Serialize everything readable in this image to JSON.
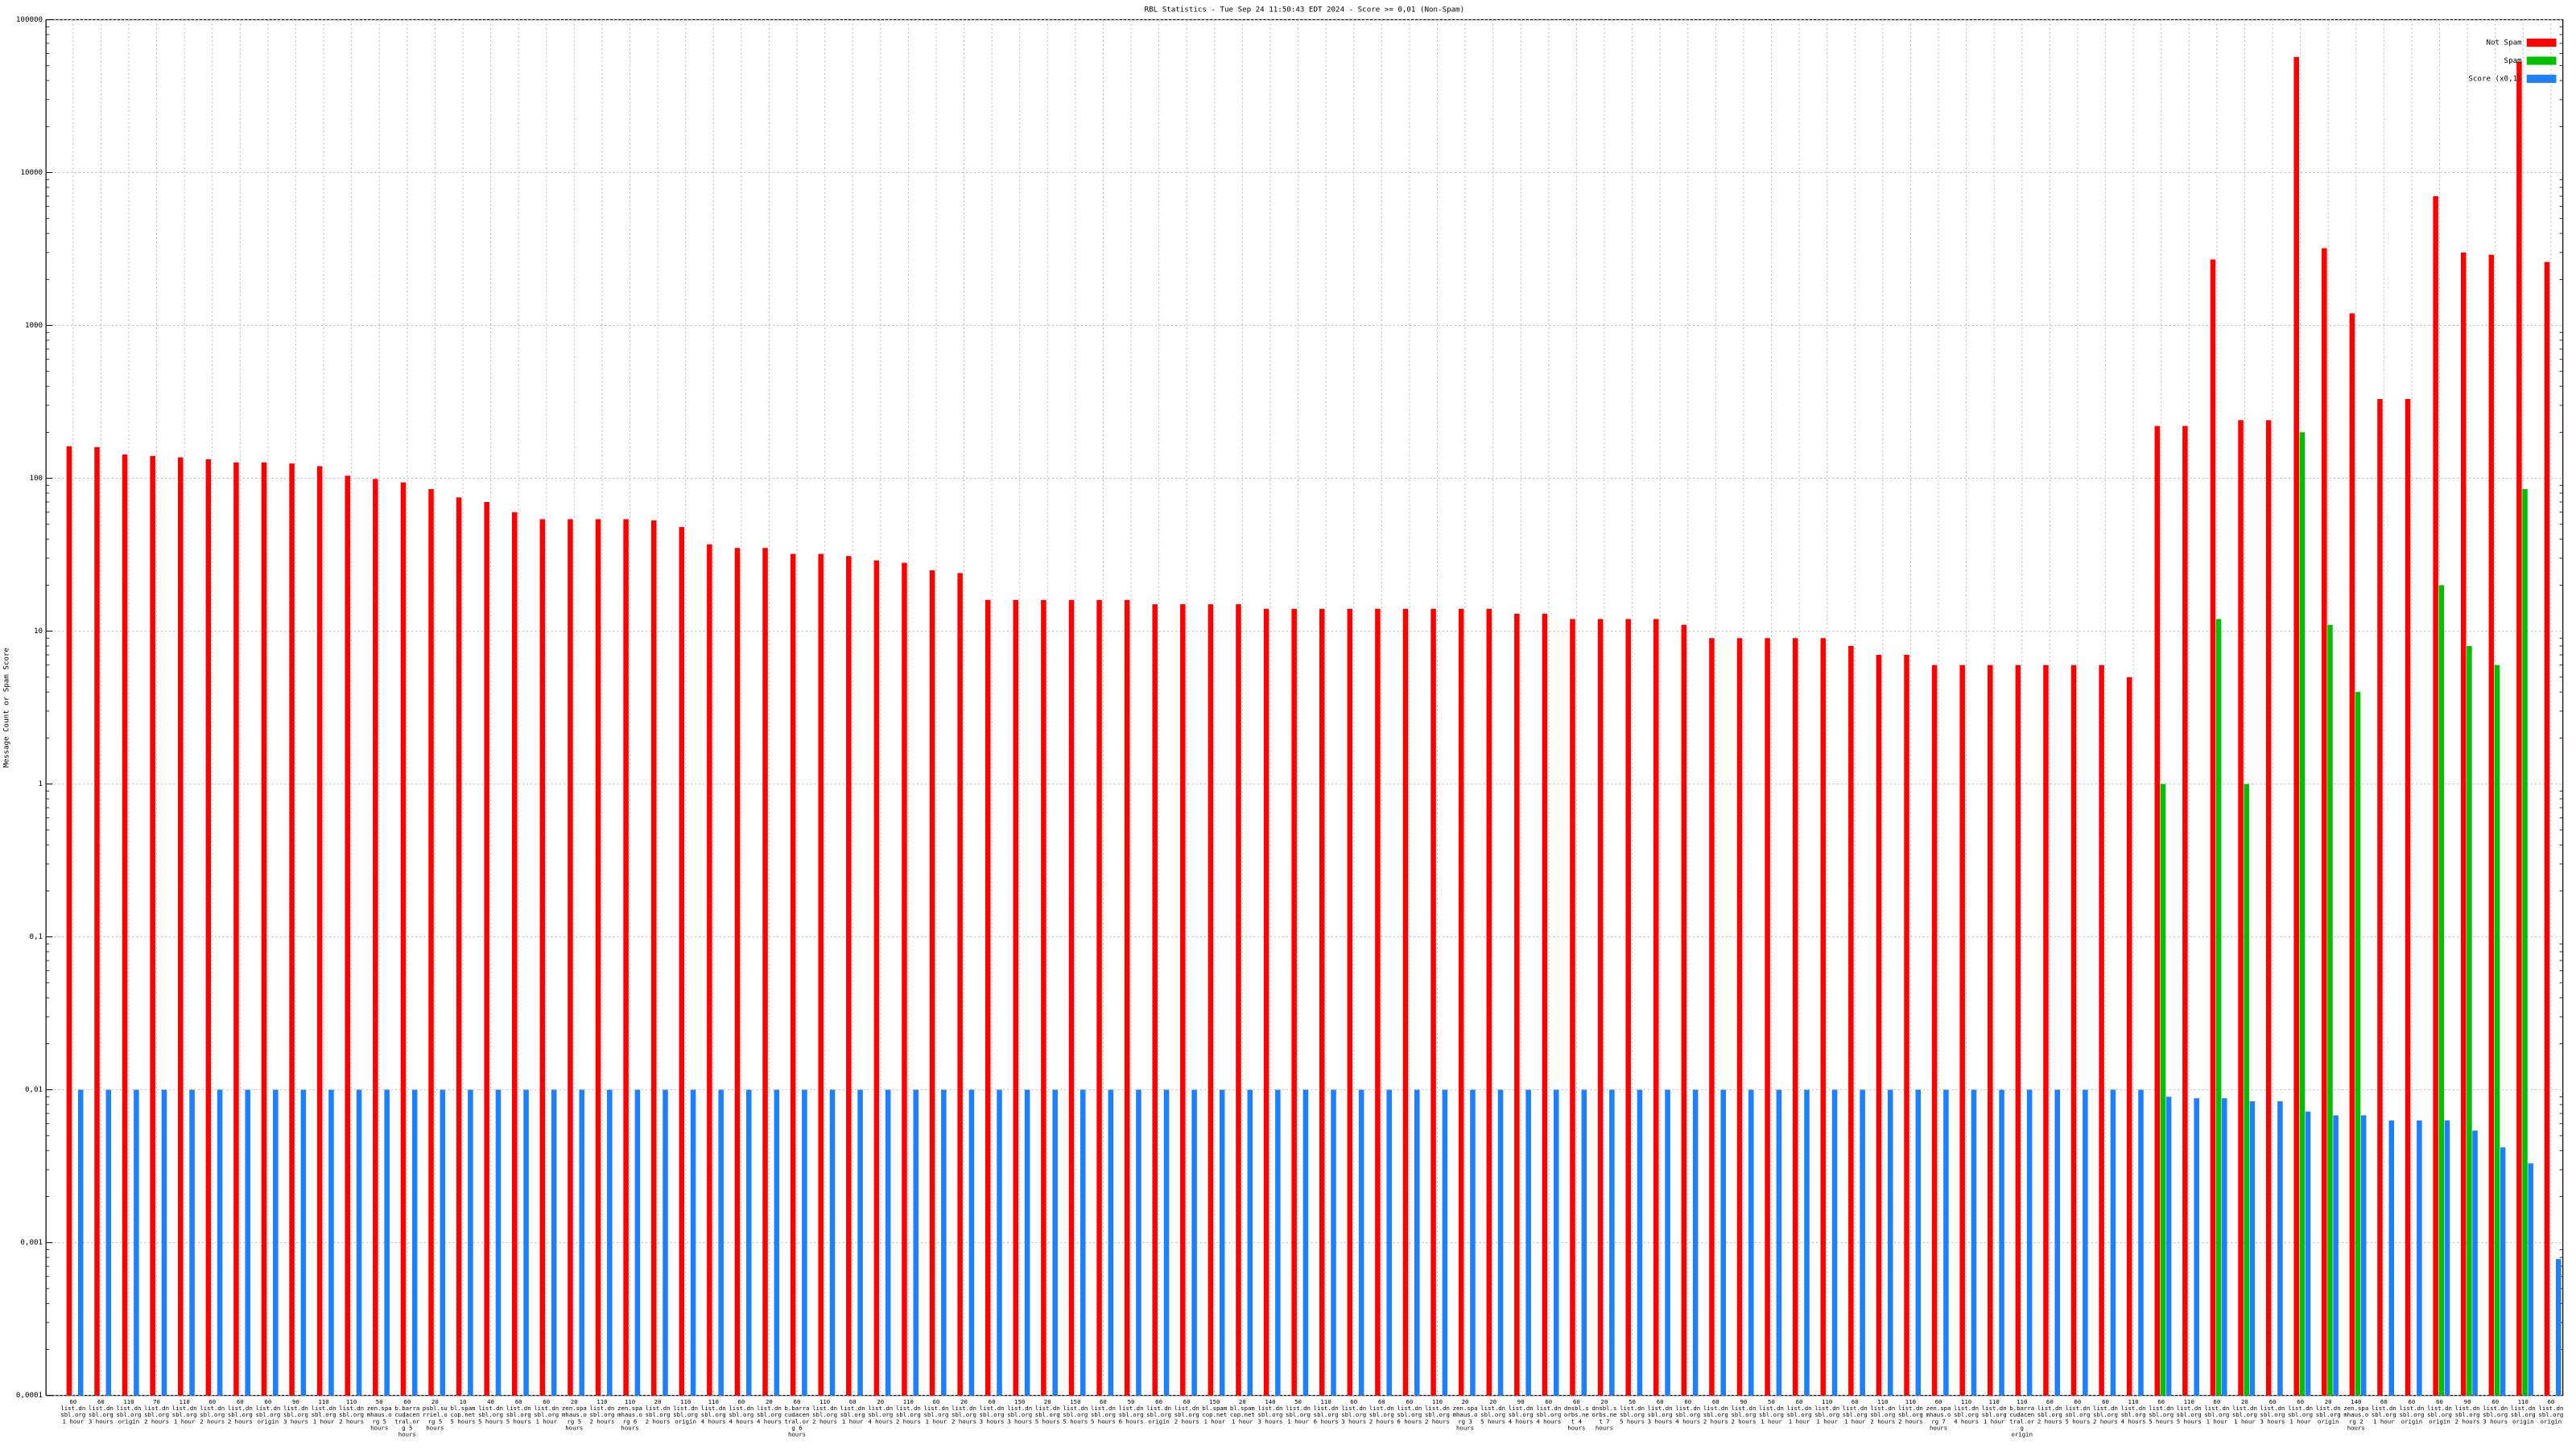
{
  "chart_data": {
    "type": "bar",
    "title": "RBL Statistics - Tue Sep 24 11:50:43 EDT 2024 - Score >= 0,01 (Non-Spam)",
    "y_label": "Message Count or Spam Score",
    "log_scale": true,
    "grid": true,
    "legend": "top-right",
    "categories": [
      "60 list.dnsbl.org 1 hour",
      "60 list.dnsbl.org 3 hours",
      "110 list.dnsbl.org origin",
      "70 list.dnsbl.org 2 hours",
      "110 list.dnsbl.org 1 hour",
      "60 list.dnsbl.org 2 hours",
      "60 list.dnsbl.org 2 hours",
      "60 list.dnsbl.org origin",
      "90 list.dnsbl.org 3 hours",
      "110 list.dnsbl.org 1 hour",
      "110 list.dnsbl.org 2 hours",
      "50 zen.spamhaus.org 5 hours",
      "60 b.barracudacentral.org 5 hours",
      "20 psbl.surriel.org 5 hours",
      "10 bl.spamcop.net 5 hours",
      "40 list.dnsbl.org 5 hours",
      "60 list.dnsbl.org 5 hours",
      "60 list.dnsbl.org 1 hour",
      "20 zen.spamhaus.org 5 hours",
      "110 list.dnsbl.org 2 hours",
      "110 zen.spamhaus.org 6 hours",
      "20 list.dnsbl.org 2 hours",
      "110 list.dnsbl.org origin",
      "110 list.dnsbl.org 4 hours",
      "60 list.dnsbl.org 4 hours",
      "20 list.dnsbl.org 4 hours",
      "60 b.barracudacentral.org 6 hours",
      "110 list.dnsbl.org 2 hours",
      "60 list.dnsbl.org 1 hour",
      "20 list.dnsbl.org 4 hours",
      "110 list.dnsbl.org 2 hours",
      "60 list.dnsbl.org 1 hour",
      "20 list.dnsbl.org 2 hours",
      "60 list.dnsbl.org 3 hours",
      "150 list.dnsbl.org 3 hours",
      "20 list.dnsbl.org 5 hours",
      "150 list.dnsbl.org 5 hours",
      "60 list.dnsbl.org 5 hours",
      "50 list.dnsbl.org 6 hours",
      "60 list.dnsbl.org origin",
      "60 list.dnsbl.org 2 hours",
      "150 bl.spamcop.net 1 hour",
      "20 bl.spamcop.net 1 hour",
      "140 list.dnsbl.org 3 hours",
      "50 list.dnsbl.org 1 hour",
      "110 list.dnsbl.org 6 hours",
      "60 list.dnsbl.org 3 hours",
      "60 list.dnsbl.org 2 hours",
      "60 list.dnsbl.org 6 hours",
      "110 list.dnsbl.org 2 hours",
      "20 zen.spamhaus.org 3 hours",
      "20 list.dnsbl.org 5 hours",
      "90 list.dnsbl.org 4 hours",
      "60 list.dnsbl.org 4 hours",
      "60 dnsbl.sorbs.net 4 hours",
      "20 dnsbl.sorbs.net 7 hours",
      "50 list.dnsbl.org 5 hours",
      "60 list.dnsbl.org 3 hours",
      "60 list.dnsbl.org 4 hours",
      "60 list.dnsbl.org 2 hours",
      "90 list.dnsbl.org 2 hours",
      "50 list.dnsbl.org 1 hour",
      "60 list.dnsbl.org 1 hour",
      "110 list.dnsbl.org 1 hour",
      "60 list.dnsbl.org 1 hour",
      "110 list.dnsbl.org 2 hours",
      "110 list.dnsbl.org 2 hours",
      "60 zen.spamhaus.org 7 hours",
      "110 list.dnsbl.org 4 hours",
      "110 list.dnsbl.org 1 hour",
      "110 b.barracudacentral.org origin",
      "60 list.dnsbl.org 2 hours",
      "60 list.dnsbl.org 5 hours",
      "60 list.dnsbl.org 2 hours",
      "110 list.dnsbl.org 4 hours",
      "60 list.dnsbl.org 5 hours",
      "110 list.dnsbl.org 5 hours",
      "60 list.dnsbl.org 1 hour",
      "20 list.dnsbl.org 1 hour",
      "60 list.dnsbl.org 3 hours",
      "60 list.dnsbl.org 1 hour",
      "20 list.dnsbl.org origin",
      "140 zen.spamhaus.org 2 hours",
      "60 list.dnsbl.org 1 hour",
      "60 list.dnsbl.org origin",
      "60 list.dnsbl.org origin",
      "90 list.dnsbl.org 2 hours",
      "60 list.dnsbl.org 3 hours",
      "110 list.dnsbl.org origin",
      "60 list.dnsbl.org origin"
    ],
    "series": [
      {
        "name": "Not Spam",
        "color": "#ff0000",
        "values": [
          162,
          160,
          143,
          140,
          137,
          133,
          127,
          127,
          125,
          120,
          104,
          99,
          94,
          85,
          75,
          70,
          60,
          54,
          54,
          54,
          54,
          53,
          48,
          37,
          35,
          35,
          32,
          32,
          31,
          29,
          28,
          25,
          24,
          16,
          16,
          16,
          16,
          16,
          16,
          15,
          15,
          15,
          15,
          14,
          14,
          14,
          14,
          14,
          14,
          14,
          14,
          14,
          13,
          13,
          12,
          12,
          12,
          12,
          11,
          9,
          9,
          9,
          9,
          9,
          8,
          7,
          7,
          6,
          6,
          6,
          6,
          6,
          6,
          6,
          5,
          220,
          220,
          2700,
          240,
          240,
          57000,
          3200,
          1200,
          330,
          330,
          7000,
          3000,
          2900,
          53000,
          2600
        ]
      },
      {
        "name": "Spam",
        "color": "#00c000",
        "values": [
          null,
          null,
          null,
          null,
          null,
          null,
          null,
          null,
          null,
          null,
          null,
          null,
          null,
          null,
          null,
          null,
          null,
          null,
          null,
          null,
          null,
          null,
          null,
          null,
          null,
          null,
          null,
          null,
          null,
          null,
          null,
          null,
          null,
          null,
          null,
          null,
          null,
          null,
          null,
          null,
          null,
          null,
          null,
          null,
          null,
          null,
          null,
          null,
          null,
          null,
          null,
          null,
          null,
          null,
          null,
          null,
          null,
          null,
          null,
          null,
          null,
          null,
          null,
          null,
          null,
          null,
          null,
          null,
          null,
          null,
          null,
          null,
          null,
          null,
          null,
          1,
          null,
          12,
          1,
          null,
          200,
          11,
          4,
          null,
          null,
          20,
          8,
          6,
          85,
          null
        ]
      },
      {
        "name": "Score (x0,1)",
        "color": "#1e7fff",
        "values": [
          0.01,
          0.01,
          0.01,
          0.01,
          0.01,
          0.01,
          0.01,
          0.01,
          0.01,
          0.01,
          0.01,
          0.01,
          0.01,
          0.01,
          0.01,
          0.01,
          0.01,
          0.01,
          0.01,
          0.01,
          0.01,
          0.01,
          0.01,
          0.01,
          0.01,
          0.01,
          0.01,
          0.01,
          0.01,
          0.01,
          0.01,
          0.01,
          0.01,
          0.01,
          0.01,
          0.01,
          0.01,
          0.01,
          0.01,
          0.01,
          0.01,
          0.01,
          0.01,
          0.01,
          0.01,
          0.01,
          0.01,
          0.01,
          0.01,
          0.01,
          0.01,
          0.01,
          0.01,
          0.01,
          0.01,
          0.01,
          0.01,
          0.01,
          0.01,
          0.01,
          0.01,
          0.01,
          0.01,
          0.01,
          0.01,
          0.01,
          0.01,
          0.01,
          0.01,
          0.01,
          0.01,
          0.01,
          0.01,
          0.01,
          0.01,
          0.009,
          0.0088,
          0.0088,
          0.0084,
          0.0084,
          0.0072,
          0.0068,
          0.0068,
          0.0063,
          0.0063,
          0.0063,
          0.0054,
          0.0042,
          0.0033,
          0.00078
        ]
      }
    ],
    "ylim": [
      0.0001,
      100000
    ],
    "yticks": [
      {
        "value": 0.0001,
        "label": "0,0001"
      },
      {
        "value": 0.001,
        "label": "0,001"
      },
      {
        "value": 0.01,
        "label": "0,01"
      },
      {
        "value": 0.1,
        "label": "0,1"
      },
      1,
      10,
      100,
      1000,
      10000,
      100000
    ]
  }
}
